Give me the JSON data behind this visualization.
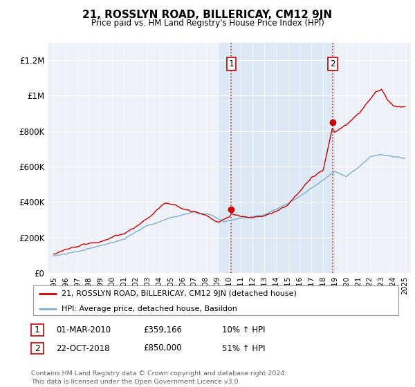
{
  "title": "21, ROSSLYN ROAD, BILLERICAY, CM12 9JN",
  "subtitle": "Price paid vs. HM Land Registry's House Price Index (HPI)",
  "hpi_label": "HPI: Average price, detached house, Basildon",
  "house_label": "21, ROSSLYN ROAD, BILLERICAY, CM12 9JN (detached house)",
  "footer": "Contains HM Land Registry data © Crown copyright and database right 2024.\nThis data is licensed under the Open Government Licence v3.0.",
  "house_color": "#cc0000",
  "hpi_color": "#7bafd4",
  "background_color": "#eef2f8",
  "shade_color": "#dde8f5",
  "transactions": [
    {
      "num": 1,
      "date": "01-MAR-2010",
      "price": 359166,
      "pct": "10%",
      "dir": "↑",
      "x": 2010.17
    },
    {
      "num": 2,
      "date": "22-OCT-2018",
      "price": 850000,
      "pct": "51%",
      "dir": "↑",
      "x": 2018.81
    }
  ],
  "ylim": [
    0,
    1300000
  ],
  "yticks": [
    0,
    200000,
    400000,
    600000,
    800000,
    1000000,
    1200000
  ],
  "ytick_labels": [
    "£0",
    "£200K",
    "£400K",
    "£600K",
    "£800K",
    "£1M",
    "£1.2M"
  ],
  "xlim_start": 1994.5,
  "xlim_end": 2025.5,
  "xticks": [
    1995,
    1996,
    1997,
    1998,
    1999,
    2000,
    2001,
    2002,
    2003,
    2004,
    2005,
    2006,
    2007,
    2008,
    2009,
    2010,
    2011,
    2012,
    2013,
    2014,
    2015,
    2016,
    2017,
    2018,
    2019,
    2020,
    2021,
    2022,
    2023,
    2024,
    2025
  ]
}
